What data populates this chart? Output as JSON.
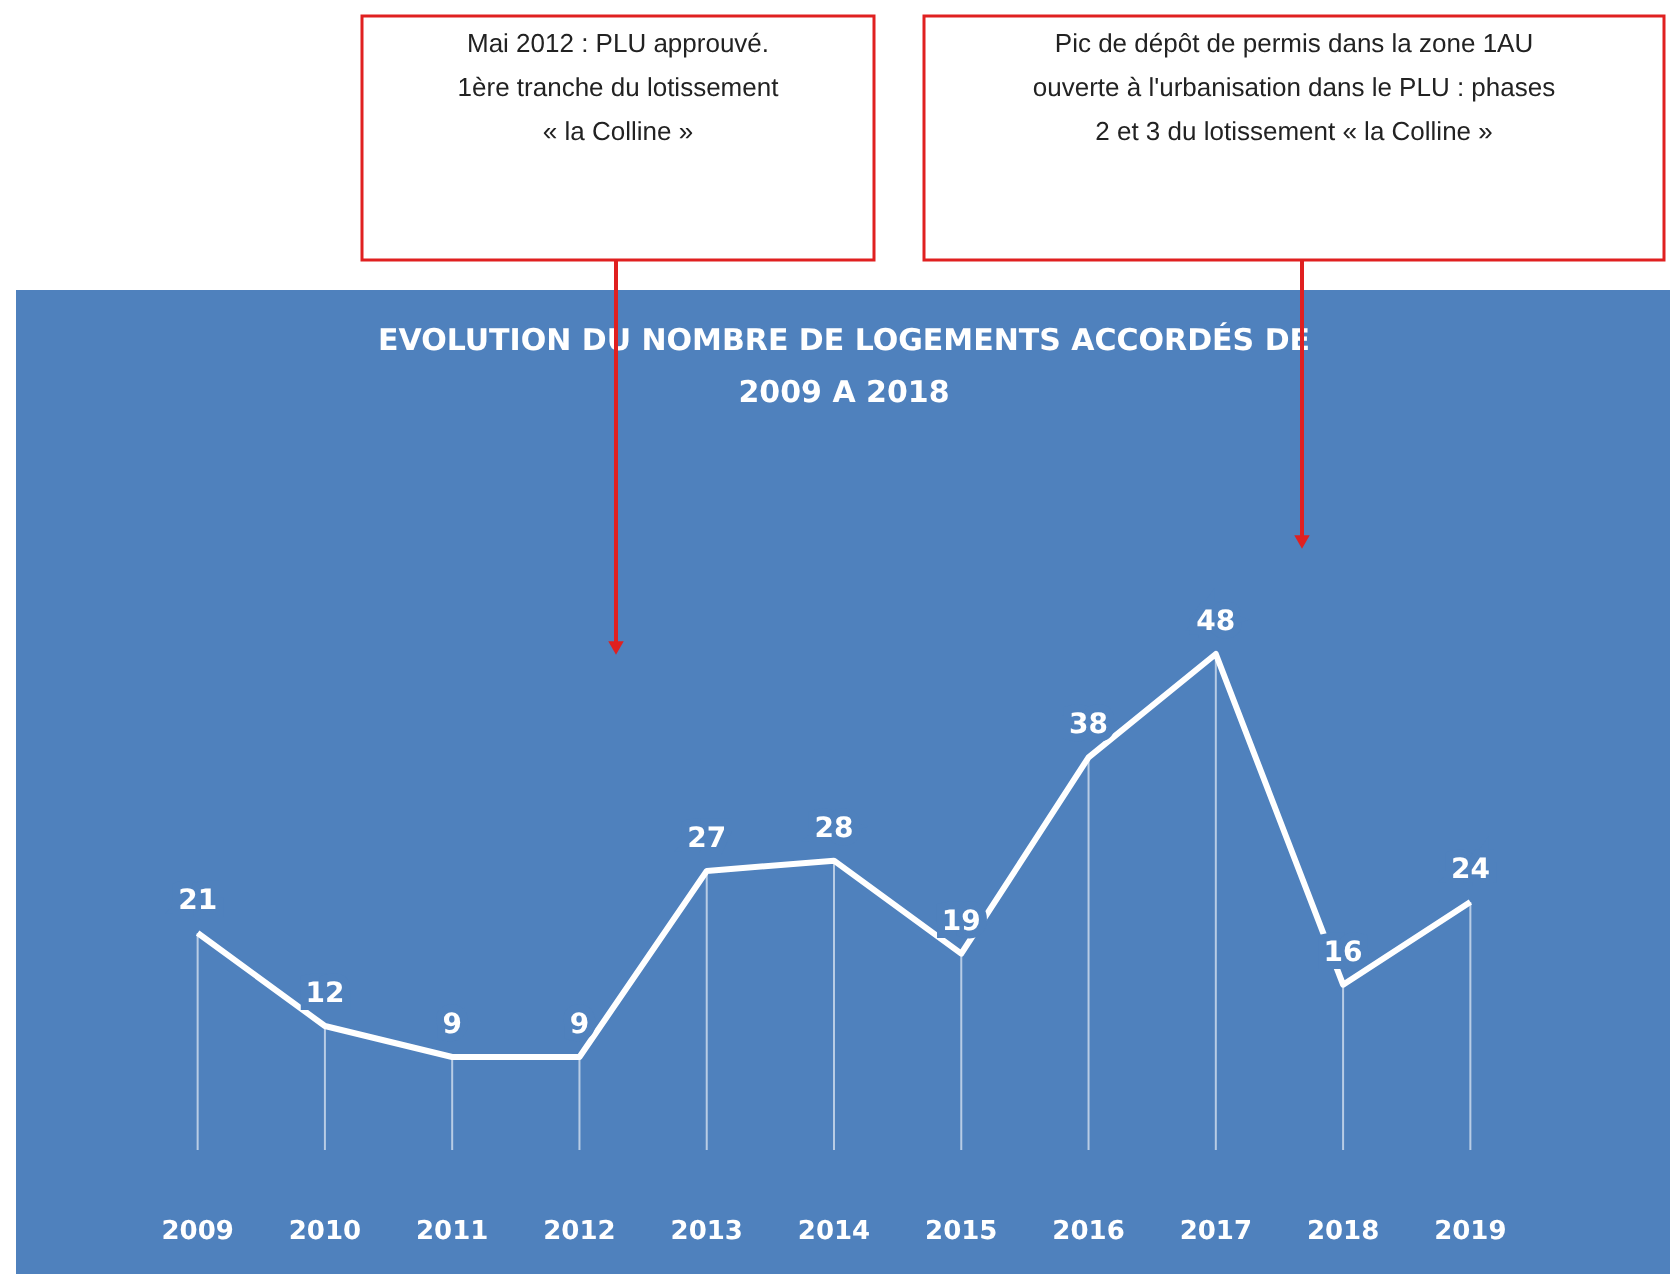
{
  "chart_data": {
    "type": "line",
    "title": "EVOLUTION DU NOMBRE DE LOGEMENTS ACCORDÉS DE\n2009 A 2018",
    "categories": [
      "2009",
      "2010",
      "2011",
      "2012",
      "2013",
      "2014",
      "2015",
      "2016",
      "2017",
      "2018",
      "2019"
    ],
    "series": [
      {
        "color": "#ffffff",
        "values": [
          21,
          12,
          9,
          9,
          27,
          28,
          19,
          38,
          48,
          16,
          24
        ]
      }
    ],
    "data_labels": true,
    "marker": "none",
    "line_style": "solid",
    "grid": "x",
    "legend": false,
    "tick_labels": "x",
    "annotations": [
      "Mai 2012 : PLU approuvé.\n1ère tranche du lotissement\n« la Colline »",
      "Pic de dépôt de permis dans la zone 1AU\nouverte à l'urbanisation dans le PLU : phases\n2 et 3 du lotissement « la Colline »"
    ]
  }
}
